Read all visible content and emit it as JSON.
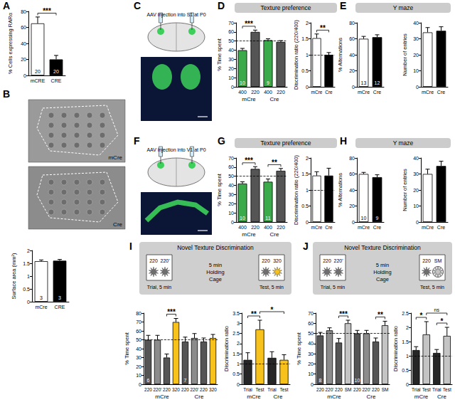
{
  "panel_labels": [
    "A",
    "B",
    "C",
    "D",
    "E",
    "F",
    "G",
    "H",
    "I",
    "J"
  ],
  "headers": [
    {
      "panel": "D",
      "text": "Texture preference"
    },
    {
      "panel": "E",
      "text": "Y maze"
    },
    {
      "panel": "G",
      "text": "Texture preference"
    },
    {
      "panel": "H",
      "text": "Y maze"
    }
  ],
  "images": [
    {
      "panel": "B",
      "labels": [
        "mCre",
        "Cre"
      ]
    },
    {
      "panel": "C",
      "caption": "AAV injection into S1 at P0"
    },
    {
      "panel": "F",
      "caption": "AAV injection into V1 at P0"
    }
  ],
  "protocols": [
    {
      "panel": "I",
      "title": "Novel Texture Discrimination",
      "trial": [
        "220",
        "220'"
      ],
      "trial_label": "Trial, 5 min",
      "holding": [
        "5 min",
        "Holding",
        "Cage"
      ],
      "test": [
        "220",
        "320"
      ],
      "test_label": "Test, 5 min"
    },
    {
      "panel": "J",
      "title": "Novel Texture Discrimination",
      "trial": [
        "220",
        "220'"
      ],
      "trial_label": "Trial, 5 min",
      "holding": [
        "5 min",
        "Holding",
        "Cage"
      ],
      "test": [
        "220",
        "SM"
      ],
      "test_label": "Test, 5 min"
    }
  ],
  "chart_data": [
    {
      "panel": "A",
      "type": "bar",
      "y_label": "% Cells expressing RARα",
      "categories": [
        "mCRE",
        "CRE"
      ],
      "values": [
        65,
        20
      ],
      "errors": [
        8,
        5
      ],
      "colors": [
        "#ffffff",
        "#000000"
      ],
      "n_labels": [
        20,
        20
      ],
      "ylim": [
        0,
        80
      ],
      "yticks": [
        0,
        20,
        40,
        60,
        80
      ],
      "significance": [
        {
          "label": "***",
          "pair": [
            0,
            1
          ]
        }
      ]
    },
    {
      "panel": "B",
      "type": "bar",
      "y_label": "Surface area (mm²)",
      "categories": [
        "mCre",
        "CRE"
      ],
      "values": [
        1.58,
        1.6
      ],
      "errors": [
        0.05,
        0.05
      ],
      "colors": [
        "#ffffff",
        "#000000"
      ],
      "n_labels": [
        3,
        3
      ],
      "ylim": [
        0,
        2
      ],
      "yticks": [
        0,
        0.5,
        1,
        1.5,
        2
      ]
    },
    {
      "panel": "D",
      "type": "bar",
      "y_label": "% Time spent",
      "categories": [
        "400",
        "220",
        "400",
        "220"
      ],
      "groups": [
        "mCre",
        "Cre"
      ],
      "values": [
        40,
        60,
        51,
        49
      ],
      "errors": [
        2,
        2,
        1.5,
        1.5
      ],
      "colors": [
        "#3aaa4a",
        "#555555",
        "#3aaa4a",
        "#555555"
      ],
      "n_labels": [
        10,
        null,
        9,
        null
      ],
      "ylim": [
        0,
        70
      ],
      "yticks": [
        0,
        10,
        20,
        30,
        40,
        50,
        60,
        70
      ],
      "reference_line": 50,
      "significance": [
        {
          "label": "***",
          "pair": [
            0,
            1
          ]
        }
      ]
    },
    {
      "panel": "D",
      "type": "bar",
      "y_label": "Discrimination ratio (220/400)",
      "categories": [
        "mCre",
        "Cre"
      ],
      "values": [
        1.52,
        1.0
      ],
      "errors": [
        0.13,
        0.07
      ],
      "colors": [
        "#ffffff",
        "#000000"
      ],
      "ylim": [
        0,
        2
      ],
      "yticks": [
        0,
        0.5,
        1,
        1.5,
        2
      ],
      "reference_line": 1,
      "significance": [
        {
          "label": "**",
          "pair": [
            0,
            1
          ]
        }
      ]
    },
    {
      "panel": "E",
      "type": "bar",
      "y_label": "% Alternations",
      "categories": [
        "mCre",
        "Cre"
      ],
      "values": [
        60,
        62
      ],
      "errors": [
        3,
        3
      ],
      "colors": [
        "#ffffff",
        "#000000"
      ],
      "n_labels": [
        13,
        12
      ],
      "ylim": [
        0,
        80
      ],
      "yticks": [
        0,
        20,
        40,
        60,
        80
      ]
    },
    {
      "panel": "E",
      "type": "bar",
      "y_label": "Number of entries",
      "categories": [
        "mCre",
        "Cre"
      ],
      "values": [
        34,
        35
      ],
      "errors": [
        3,
        2.5
      ],
      "colors": [
        "#ffffff",
        "#000000"
      ],
      "ylim": [
        0,
        40
      ],
      "yticks": [
        0,
        10,
        20,
        30,
        40
      ]
    },
    {
      "panel": "G",
      "type": "bar",
      "y_label": "% Time spent",
      "categories": [
        "400",
        "220",
        "400",
        "220"
      ],
      "groups": [
        "mCre",
        "Cre"
      ],
      "values": [
        42,
        58,
        44,
        56
      ],
      "errors": [
        2,
        2.5,
        3,
        2.5
      ],
      "colors": [
        "#3aaa4a",
        "#555555",
        "#3aaa4a",
        "#555555"
      ],
      "n_labels": [
        10,
        null,
        11,
        null
      ],
      "ylim": [
        0,
        70
      ],
      "yticks": [
        0,
        10,
        20,
        30,
        40,
        50,
        60,
        70
      ],
      "reference_line": 50,
      "significance": [
        {
          "label": "***",
          "pair": [
            0,
            1
          ]
        },
        {
          "label": "**",
          "pair": [
            2,
            3
          ]
        }
      ]
    },
    {
      "panel": "G",
      "type": "bar",
      "y_label": "Discrimination ratio (220/400)",
      "categories": [
        "mCre",
        "Cre"
      ],
      "values": [
        1.45,
        1.45
      ],
      "errors": [
        0.12,
        0.23
      ],
      "colors": [
        "#ffffff",
        "#000000"
      ],
      "ylim": [
        0,
        2
      ],
      "yticks": [
        0,
        0.5,
        1,
        1.5,
        2
      ],
      "reference_line": 1
    },
    {
      "panel": "H",
      "type": "bar",
      "y_label": "% Alternations",
      "categories": [
        "mCre",
        "Cre"
      ],
      "values": [
        60,
        56
      ],
      "errors": [
        2,
        3
      ],
      "colors": [
        "#ffffff",
        "#000000"
      ],
      "n_labels": [
        10,
        9
      ],
      "ylim": [
        0,
        80
      ],
      "yticks": [
        0,
        20,
        40,
        60,
        80
      ]
    },
    {
      "panel": "H",
      "type": "bar",
      "y_label": "Number of entries",
      "categories": [
        "mCre",
        "Cre"
      ],
      "values": [
        30,
        35
      ],
      "errors": [
        3,
        3
      ],
      "colors": [
        "#ffffff",
        "#000000"
      ],
      "ylim": [
        0,
        40
      ],
      "yticks": [
        0,
        10,
        20,
        30,
        40
      ]
    },
    {
      "panel": "I",
      "type": "bar",
      "y_label": "% Time spent",
      "categories": [
        "220",
        "220'",
        "220",
        "320",
        "220",
        "220'",
        "220",
        "320"
      ],
      "groups": [
        "mCre",
        "Cre"
      ],
      "values": [
        50,
        50,
        30,
        70,
        48,
        52,
        48,
        52
      ],
      "errors": [
        5,
        5,
        4,
        4,
        5,
        5,
        4,
        4
      ],
      "colors": [
        "#555555",
        "#8c8c8c",
        "#555555",
        "#f7c21c",
        "#555555",
        "#8c8c8c",
        "#555555",
        "#f7c21c"
      ],
      "n_labels": [
        6,
        null,
        null,
        null,
        7,
        null,
        null,
        null
      ],
      "ylim": [
        0,
        80
      ],
      "yticks": [
        0,
        10,
        20,
        30,
        40,
        50,
        60,
        70,
        80
      ],
      "reference_line": 50,
      "significance": [
        {
          "label": "***",
          "pair": [
            2,
            3
          ]
        }
      ]
    },
    {
      "panel": "I",
      "type": "bar",
      "y_label": "Discrimination ratio",
      "categories": [
        "Trial",
        "Test",
        "Trial",
        "Test"
      ],
      "groups": [
        "mCre",
        "Cre"
      ],
      "values": [
        1.2,
        2.7,
        1.3,
        1.2
      ],
      "errors": [
        0.35,
        0.45,
        0.3,
        0.25
      ],
      "colors": [
        "#262626",
        "#f7c21c",
        "#262626",
        "#f7c21c"
      ],
      "ylim": [
        0,
        3.5
      ],
      "yticks": [
        0,
        0.5,
        1,
        1.5,
        2,
        2.5,
        3,
        3.5
      ],
      "reference_line": 1,
      "significance": [
        {
          "label": "**",
          "pair": [
            0,
            1
          ]
        },
        {
          "label": "*",
          "pair": [
            1,
            3
          ]
        }
      ]
    },
    {
      "panel": "J",
      "type": "bar",
      "y_label": "% Time spent",
      "categories": [
        "220",
        "220'",
        "220",
        "SM",
        "220",
        "220'",
        "220",
        "SM"
      ],
      "groups": [
        "mCre",
        "Cre"
      ],
      "values": [
        48,
        53,
        41,
        60,
        50,
        50,
        42,
        58
      ],
      "errors": [
        3,
        2.5,
        4,
        3,
        3,
        3,
        3.5,
        4
      ],
      "colors": [
        "#555555",
        "#8c8c8c",
        "#555555",
        "#c4c4c4",
        "#555555",
        "#8c8c8c",
        "#555555",
        "#c4c4c4"
      ],
      "n_labels": [
        8,
        null,
        null,
        null,
        10,
        null,
        null,
        null
      ],
      "ylim": [
        0,
        70
      ],
      "yticks": [
        0,
        10,
        20,
        30,
        40,
        50,
        60,
        70
      ],
      "reference_line": 50,
      "significance": [
        {
          "label": "***",
          "pair": [
            2,
            3
          ]
        },
        {
          "label": "**",
          "pair": [
            6,
            7
          ]
        }
      ]
    },
    {
      "panel": "J",
      "type": "bar",
      "y_label": "Discrimination ratio",
      "categories": [
        "Trial",
        "Test",
        "Trial",
        "Test"
      ],
      "groups": [
        "mCre",
        "Cre"
      ],
      "values": [
        1.2,
        1.75,
        1.1,
        1.7
      ],
      "errors": [
        0.12,
        0.45,
        0.12,
        0.3
      ],
      "colors": [
        "#262626",
        "#c4c4c4",
        "#262626",
        "#c4c4c4"
      ],
      "ylim": [
        0,
        2.5
      ],
      "yticks": [
        0,
        0.5,
        1,
        1.5,
        2,
        2.5
      ],
      "reference_line": 1,
      "significance": [
        {
          "label": "*",
          "pair": [
            0,
            1
          ]
        },
        {
          "label": "*",
          "pair": [
            2,
            3
          ]
        },
        {
          "label": "ns",
          "pair": [
            1,
            3
          ]
        }
      ]
    }
  ]
}
